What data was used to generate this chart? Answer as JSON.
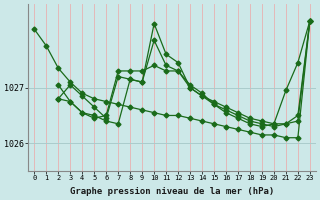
{
  "xlabel": "Graphe pression niveau de la mer (hPa)",
  "bg_color": "#cce8e8",
  "line_color": "#1a6b1a",
  "grid_color_v": "#e8b0b0",
  "grid_color_h": "#aacccc",
  "ylim": [
    1025.5,
    1028.5
  ],
  "xlim": [
    -0.5,
    23.5
  ],
  "yticks": [
    1026,
    1027
  ],
  "xticks": [
    0,
    1,
    2,
    3,
    4,
    5,
    6,
    7,
    8,
    9,
    10,
    11,
    12,
    13,
    14,
    15,
    16,
    17,
    18,
    19,
    20,
    21,
    22,
    23
  ],
  "series1_x": [
    0,
    1,
    2,
    3,
    4,
    5,
    6,
    7,
    8,
    9,
    10,
    11,
    12,
    13,
    14,
    15,
    16,
    17,
    18,
    19,
    20,
    21,
    22,
    23
  ],
  "series1_y": [
    1028.05,
    1027.75,
    1027.35,
    1027.1,
    1026.9,
    1026.8,
    1026.75,
    1026.7,
    1026.65,
    1026.6,
    1026.55,
    1026.5,
    1026.5,
    1026.45,
    1026.4,
    1026.35,
    1026.3,
    1026.25,
    1026.2,
    1026.15,
    1026.15,
    1026.1,
    1026.1,
    1028.2
  ],
  "series2_x": [
    2,
    3,
    4,
    5,
    6,
    7,
    8,
    9,
    10,
    11,
    12,
    13,
    14,
    15,
    16,
    17,
    18,
    19,
    20,
    21,
    22,
    23
  ],
  "series2_y": [
    1026.8,
    1026.75,
    1026.55,
    1026.5,
    1026.4,
    1026.35,
    1027.15,
    1027.1,
    1027.85,
    1027.4,
    1027.3,
    1027.0,
    1026.85,
    1026.75,
    1026.65,
    1026.55,
    1026.45,
    1026.4,
    1026.35,
    1026.95,
    1027.45,
    1028.2
  ],
  "series3_x": [
    2,
    3,
    4,
    5,
    6,
    7,
    8,
    9,
    10,
    11,
    12,
    13,
    14,
    15,
    16,
    17,
    18,
    19,
    20,
    21,
    22,
    23
  ],
  "series3_y": [
    1026.8,
    1027.05,
    1026.85,
    1026.65,
    1026.45,
    1027.2,
    1027.15,
    1027.1,
    1028.15,
    1027.6,
    1027.45,
    1027.0,
    1026.85,
    1026.7,
    1026.6,
    1026.5,
    1026.4,
    1026.35,
    1026.3,
    1026.35,
    1026.4,
    1028.2
  ],
  "series4_x": [
    2,
    3,
    4,
    5,
    6,
    7,
    8,
    9,
    10,
    11,
    12,
    13,
    14,
    15,
    16,
    17,
    18,
    19,
    20,
    21,
    22,
    23
  ],
  "series4_y": [
    1027.05,
    1026.75,
    1026.55,
    1026.45,
    1026.5,
    1027.3,
    1027.3,
    1027.3,
    1027.4,
    1027.3,
    1027.3,
    1027.05,
    1026.9,
    1026.7,
    1026.55,
    1026.45,
    1026.35,
    1026.3,
    1026.35,
    1026.35,
    1026.5,
    1028.2
  ]
}
